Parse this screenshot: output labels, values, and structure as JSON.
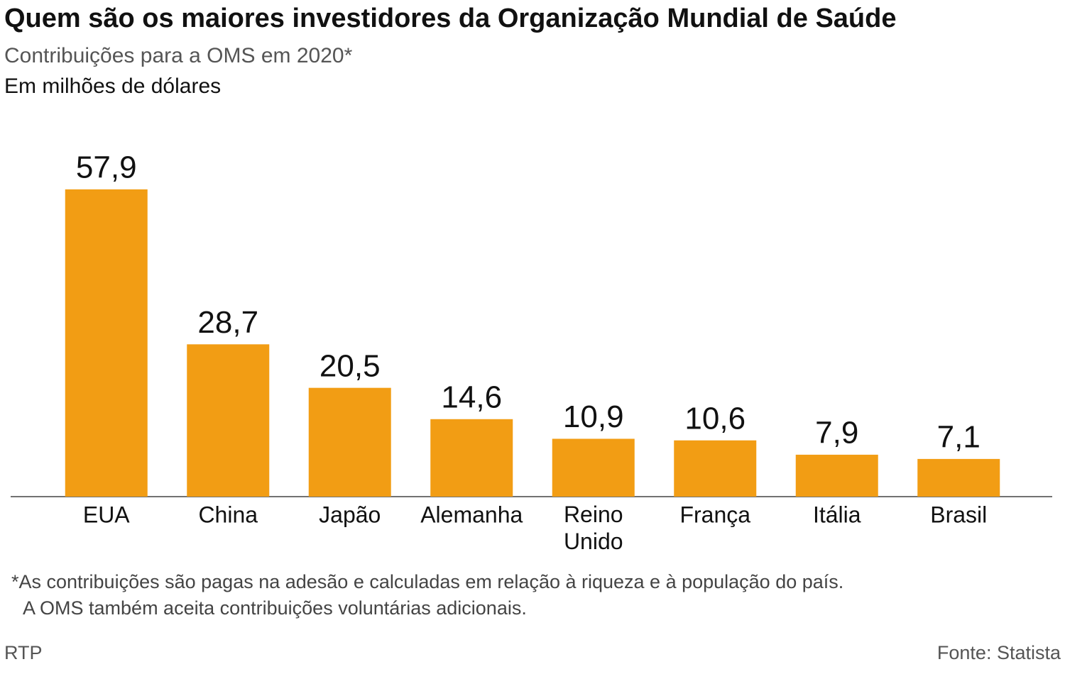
{
  "chart_data": {
    "type": "bar",
    "title": "Quem são os maiores investidores da Organização Mundial de Saúde",
    "subtitle": "Contribuições para a OMS em 2020*",
    "unit_label": "Em milhões de dólares",
    "categories": [
      "EUA",
      "China",
      "Japão",
      "Alemanha",
      "Reino Unido",
      "França",
      "Itália",
      "Brasil"
    ],
    "values": [
      57.9,
      28.7,
      20.5,
      14.6,
      10.9,
      10.6,
      7.9,
      7.1
    ],
    "value_labels": [
      "57,9",
      "28,7",
      "20,5",
      "14,6",
      "10,9",
      "10,6",
      "7,9",
      "7,1"
    ],
    "color": "#f29d14",
    "footnote": [
      "*As contribuições são pagas na adesão e calculadas em relação à riqueza e à população do país.",
      "A OMS também aceita contribuições voluntárias adicionais."
    ],
    "credit": "RTP",
    "source": "Fonte: Statista"
  }
}
